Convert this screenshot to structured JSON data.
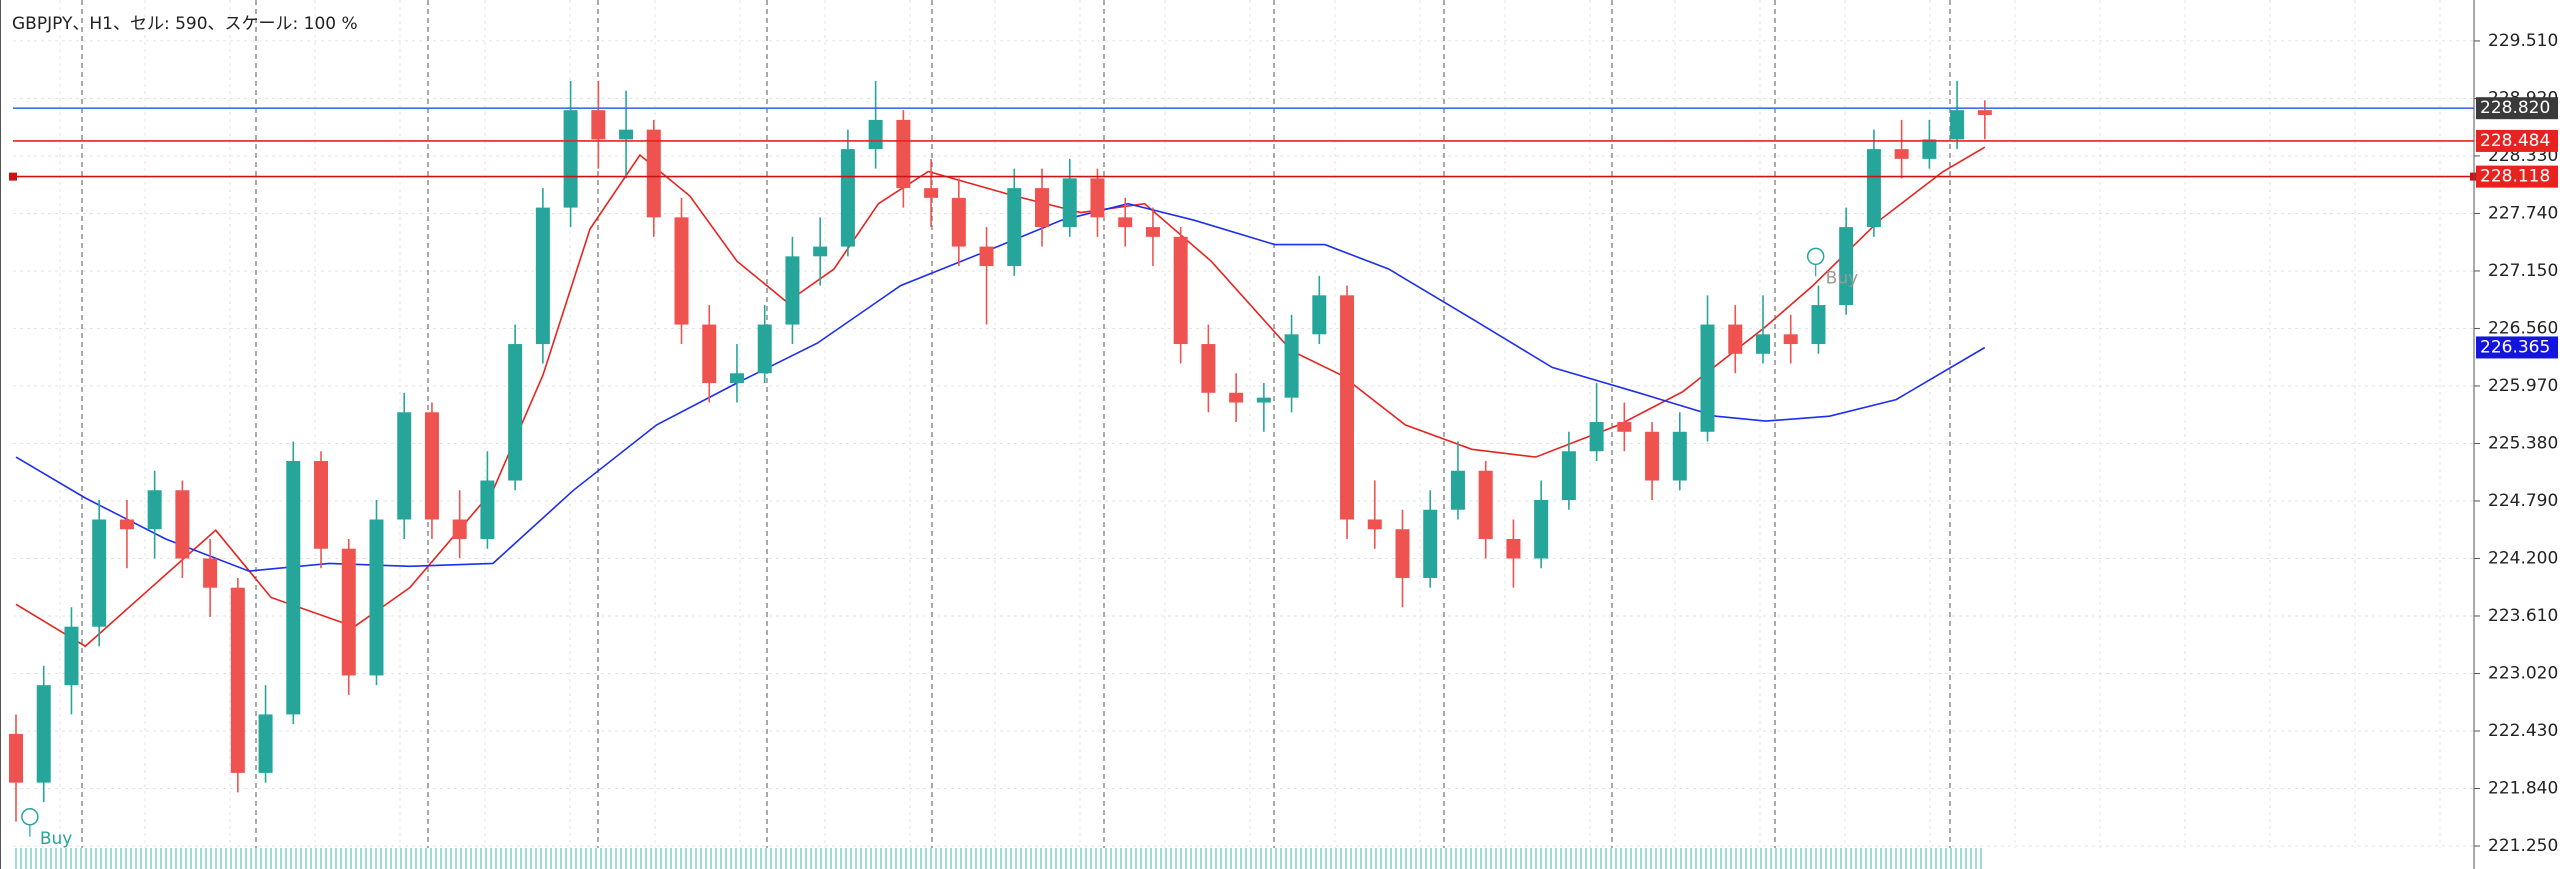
{
  "chart_data": {
    "type": "candlestick",
    "title": "GBPJPY、H1、セル: 590、スケール: 100 %",
    "up_color": "#26a69a",
    "down_color": "#ef5350",
    "ylim": [
      221.25,
      229.93
    ],
    "yticks": [
      {
        "value": 229.51,
        "label": "229.510"
      },
      {
        "value": 228.92,
        "label": "228.920"
      },
      {
        "value": 228.33,
        "label": "228.330"
      },
      {
        "value": 227.74,
        "label": "227.740"
      },
      {
        "value": 227.15,
        "label": "227.150"
      },
      {
        "value": 226.56,
        "label": "226.560"
      },
      {
        "value": 225.97,
        "label": "225.970"
      },
      {
        "value": 225.38,
        "label": "225.380"
      },
      {
        "value": 224.79,
        "label": "224.790"
      },
      {
        "value": 224.2,
        "label": "224.200"
      },
      {
        "value": 223.61,
        "label": "223.610"
      },
      {
        "value": 223.02,
        "label": "223.020"
      },
      {
        "value": 222.43,
        "label": "222.430"
      },
      {
        "value": 221.84,
        "label": "221.840"
      },
      {
        "value": 221.25,
        "label": "221.250"
      }
    ],
    "grid": true,
    "ohlc": [
      [
        222.4,
        222.6,
        221.5,
        221.9
      ],
      [
        221.9,
        223.1,
        221.7,
        222.9
      ],
      [
        222.9,
        223.7,
        222.6,
        223.5
      ],
      [
        223.5,
        224.8,
        223.3,
        224.6
      ],
      [
        224.6,
        224.8,
        224.1,
        224.5
      ],
      [
        224.5,
        225.1,
        224.2,
        224.9
      ],
      [
        224.9,
        225.0,
        224.0,
        224.2
      ],
      [
        224.2,
        224.4,
        223.6,
        223.9
      ],
      [
        223.9,
        224.0,
        221.8,
        222.0
      ],
      [
        222.0,
        222.9,
        221.9,
        222.6
      ],
      [
        222.6,
        225.4,
        222.5,
        225.2
      ],
      [
        225.2,
        225.3,
        224.1,
        224.3
      ],
      [
        224.3,
        224.4,
        222.8,
        223.0
      ],
      [
        223.0,
        224.8,
        222.9,
        224.6
      ],
      [
        224.6,
        225.9,
        224.4,
        225.7
      ],
      [
        225.7,
        225.8,
        224.4,
        224.6
      ],
      [
        224.6,
        224.9,
        224.2,
        224.4
      ],
      [
        224.4,
        225.3,
        224.3,
        225.0
      ],
      [
        225.0,
        226.6,
        224.9,
        226.4
      ],
      [
        226.4,
        228.0,
        226.2,
        227.8
      ],
      [
        227.8,
        229.1,
        227.6,
        228.8
      ],
      [
        228.8,
        229.1,
        228.2,
        228.5
      ],
      [
        228.5,
        229.0,
        228.1,
        228.6
      ],
      [
        228.6,
        228.7,
        227.5,
        227.7
      ],
      [
        227.7,
        227.9,
        226.4,
        226.6
      ],
      [
        226.6,
        226.8,
        225.8,
        226.0
      ],
      [
        226.0,
        226.4,
        225.8,
        226.1
      ],
      [
        226.1,
        226.8,
        226.0,
        226.6
      ],
      [
        226.6,
        227.5,
        226.4,
        227.3
      ],
      [
        227.3,
        227.7,
        227.0,
        227.4
      ],
      [
        227.4,
        228.6,
        227.3,
        228.4
      ],
      [
        228.4,
        229.1,
        228.2,
        228.7
      ],
      [
        228.7,
        228.8,
        227.8,
        228.0
      ],
      [
        228.0,
        228.3,
        227.6,
        227.9
      ],
      [
        227.9,
        228.1,
        227.2,
        227.4
      ],
      [
        227.4,
        227.6,
        226.6,
        227.2
      ],
      [
        227.2,
        228.2,
        227.1,
        228.0
      ],
      [
        228.0,
        228.2,
        227.4,
        227.6
      ],
      [
        227.6,
        228.3,
        227.5,
        228.1
      ],
      [
        228.1,
        228.2,
        227.5,
        227.7
      ],
      [
        227.7,
        227.9,
        227.4,
        227.6
      ],
      [
        227.6,
        227.8,
        227.2,
        227.5
      ],
      [
        227.5,
        227.6,
        226.2,
        226.4
      ],
      [
        226.4,
        226.6,
        225.7,
        225.9
      ],
      [
        225.9,
        226.1,
        225.6,
        225.8
      ],
      [
        225.8,
        226.0,
        225.5,
        225.85
      ],
      [
        225.85,
        226.7,
        225.7,
        226.5
      ],
      [
        226.5,
        227.1,
        226.4,
        226.9
      ],
      [
        226.9,
        227.0,
        224.4,
        224.6
      ],
      [
        224.6,
        225.0,
        224.3,
        224.5
      ],
      [
        224.5,
        224.7,
        223.7,
        224.0
      ],
      [
        224.0,
        224.9,
        223.9,
        224.7
      ],
      [
        224.7,
        225.4,
        224.6,
        225.1
      ],
      [
        225.1,
        225.2,
        224.2,
        224.4
      ],
      [
        224.4,
        224.6,
        223.9,
        224.2
      ],
      [
        224.2,
        225.0,
        224.1,
        224.8
      ],
      [
        224.8,
        225.5,
        224.7,
        225.3
      ],
      [
        225.3,
        226.0,
        225.2,
        225.6
      ],
      [
        225.6,
        225.8,
        225.3,
        225.5
      ],
      [
        225.5,
        225.6,
        224.8,
        225.0
      ],
      [
        225.0,
        225.7,
        224.9,
        225.5
      ],
      [
        225.5,
        226.9,
        225.4,
        226.6
      ],
      [
        226.6,
        226.8,
        226.1,
        226.3
      ],
      [
        226.3,
        226.9,
        226.2,
        226.5
      ],
      [
        226.5,
        226.7,
        226.2,
        226.4
      ],
      [
        226.4,
        227.0,
        226.3,
        226.8
      ],
      [
        226.8,
        227.8,
        226.7,
        227.6
      ],
      [
        227.6,
        228.6,
        227.5,
        228.4
      ],
      [
        228.4,
        228.7,
        228.1,
        228.3
      ],
      [
        228.3,
        228.7,
        228.2,
        228.5
      ],
      [
        228.5,
        229.1,
        228.4,
        228.8
      ],
      [
        228.8,
        228.9,
        228.5,
        228.75
      ]
    ],
    "series": [
      {
        "color": "#e8231f",
        "x": [
          0,
          2.5,
          7.2,
          9.2,
          12.2,
          14.2,
          17.2,
          19,
          20.7,
          22.5,
          24.3,
          26,
          27.8,
          29.5,
          31.1,
          32.9,
          36,
          38.4,
          40.7,
          43.1,
          46,
          47.8,
          50.1,
          52.5,
          54.8,
          57.8,
          60.1,
          63.1,
          64.8,
          67.2,
          69.5,
          71
        ],
        "values": [
          223.73,
          223.3,
          224.49,
          223.8,
          223.5,
          223.9,
          224.9,
          226.08,
          227.58,
          228.34,
          227.92,
          227.25,
          226.83,
          227.17,
          227.84,
          228.17,
          227.92,
          227.75,
          227.84,
          227.25,
          226.33,
          226.08,
          225.57,
          225.32,
          225.24,
          225.57,
          225.91,
          226.58,
          227.0,
          227.67,
          228.17,
          228.42
        ]
      },
      {
        "color": "#1c2ff0",
        "x": [
          0,
          2.5,
          5.4,
          8.4,
          11.3,
          14.2,
          17.2,
          20.1,
          23.1,
          26,
          28.9,
          31.9,
          34.8,
          37.7,
          40.1,
          42.5,
          45.4,
          47.2,
          49.5,
          52.5,
          55.4,
          58.4,
          61.3,
          63.1,
          65.4,
          67.8,
          71
        ],
        "values": [
          225.24,
          224.82,
          224.4,
          224.07,
          224.15,
          224.12,
          224.15,
          224.9,
          225.57,
          226.0,
          226.41,
          227.0,
          227.33,
          227.67,
          227.84,
          227.67,
          227.42,
          227.42,
          227.17,
          226.66,
          226.16,
          225.91,
          225.66,
          225.61,
          225.66,
          225.83,
          226.365
        ]
      }
    ],
    "levels": [
      {
        "value": 228.82,
        "label": "228.820",
        "color": "#3d6fe0",
        "label_bg": "#3a3a3a"
      },
      {
        "value": 228.484,
        "label": "228.484",
        "color": "#e8231f",
        "label_bg": "#e8231f"
      },
      {
        "value": 228.118,
        "label": "228.118",
        "color": "#c81414",
        "label_bg": "#e8231f"
      },
      {
        "value": 226.365,
        "label": "226.365",
        "color": null,
        "label_bg": "#1414e0"
      }
    ],
    "annotations": [
      {
        "text": "Buy",
        "x": 0.5,
        "value": 221.55
      },
      {
        "text": "Buy",
        "x": 64.9,
        "value": 227.3
      }
    ]
  }
}
